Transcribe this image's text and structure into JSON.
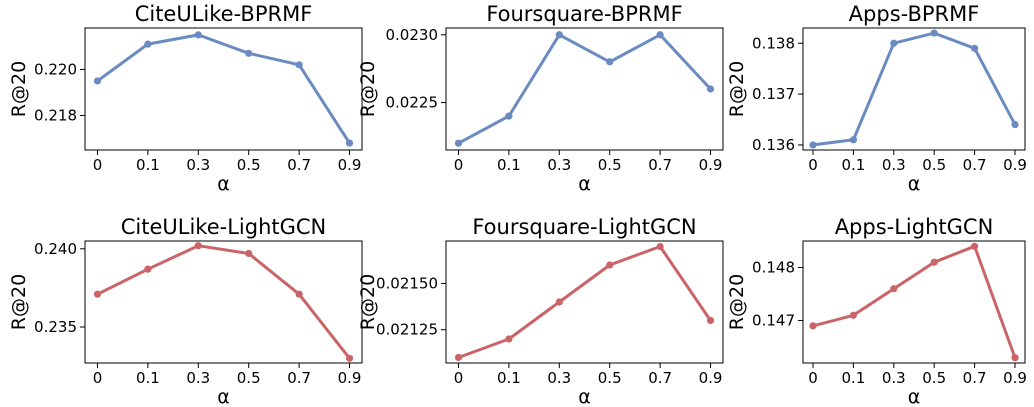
{
  "figure": {
    "colors": {
      "bprmf": "#6A8BC1",
      "lightgcn": "#CB6468"
    }
  },
  "chart_data": [
    {
      "type": "line",
      "title": "CiteULike-BPRMF",
      "xlabel": "α",
      "ylabel": "R@20",
      "categories": [
        "0",
        "0.1",
        "0.3",
        "0.5",
        "0.7",
        "0.9"
      ],
      "values": [
        0.2195,
        0.2211,
        0.2215,
        0.2207,
        0.2202,
        0.2168
      ],
      "ylim": [
        0.2165,
        0.2218
      ],
      "yticks": [
        0.218,
        0.22
      ],
      "ytick_labels": [
        "0.218",
        "0.220"
      ],
      "color": "#6A8BC1",
      "grid": false
    },
    {
      "type": "line",
      "title": "Foursquare-BPRMF",
      "xlabel": "α",
      "ylabel": "R@20",
      "categories": [
        "0",
        "0.1",
        "0.3",
        "0.5",
        "0.7",
        "0.9"
      ],
      "values": [
        0.0222,
        0.0224,
        0.023,
        0.0228,
        0.023,
        0.0226
      ],
      "ylim": [
        0.02215,
        0.02305
      ],
      "yticks": [
        0.0225,
        0.023
      ],
      "ytick_labels": [
        "0.0225",
        "0.0230"
      ],
      "color": "#6A8BC1",
      "grid": false
    },
    {
      "type": "line",
      "title": "Apps-BPRMF",
      "xlabel": "α",
      "ylabel": "R@20",
      "categories": [
        "0",
        "0.1",
        "0.3",
        "0.5",
        "0.7",
        "0.9"
      ],
      "values": [
        0.136,
        0.1361,
        0.138,
        0.1382,
        0.1379,
        0.1364
      ],
      "ylim": [
        0.1359,
        0.1383
      ],
      "yticks": [
        0.136,
        0.137,
        0.138
      ],
      "ytick_labels": [
        "0.136",
        "0.137",
        "0.138"
      ],
      "color": "#6A8BC1",
      "grid": false
    },
    {
      "type": "line",
      "title": "CiteULike-LightGCN",
      "xlabel": "α",
      "ylabel": "R@20",
      "categories": [
        "0",
        "0.1",
        "0.3",
        "0.5",
        "0.7",
        "0.9"
      ],
      "values": [
        0.2371,
        0.2387,
        0.2402,
        0.2397,
        0.2371,
        0.233
      ],
      "ylim": [
        0.2327,
        0.2405
      ],
      "yticks": [
        0.235,
        0.24
      ],
      "ytick_labels": [
        "0.235",
        "0.240"
      ],
      "color": "#CB6468",
      "grid": false
    },
    {
      "type": "line",
      "title": "Foursquare-LightGCN",
      "xlabel": "α",
      "ylabel": "R@20",
      "categories": [
        "0",
        "0.1",
        "0.3",
        "0.5",
        "0.7",
        "0.9"
      ],
      "values": [
        0.0211,
        0.0212,
        0.0214,
        0.0216,
        0.0217,
        0.0213
      ],
      "ylim": [
        0.02107,
        0.02173
      ],
      "yticks": [
        0.02125,
        0.0215
      ],
      "ytick_labels": [
        "0.02125",
        "0.02150"
      ],
      "color": "#CB6468",
      "grid": false
    },
    {
      "type": "line",
      "title": "Apps-LightGCN",
      "xlabel": "α",
      "ylabel": "R@20",
      "categories": [
        "0",
        "0.1",
        "0.3",
        "0.5",
        "0.7",
        "0.9"
      ],
      "values": [
        0.1469,
        0.1471,
        0.1476,
        0.1481,
        0.1484,
        0.1463
      ],
      "ylim": [
        0.1462,
        0.1485
      ],
      "yticks": [
        0.147,
        0.148
      ],
      "ytick_labels": [
        "0.147",
        "0.148"
      ],
      "color": "#CB6468",
      "grid": false
    }
  ]
}
